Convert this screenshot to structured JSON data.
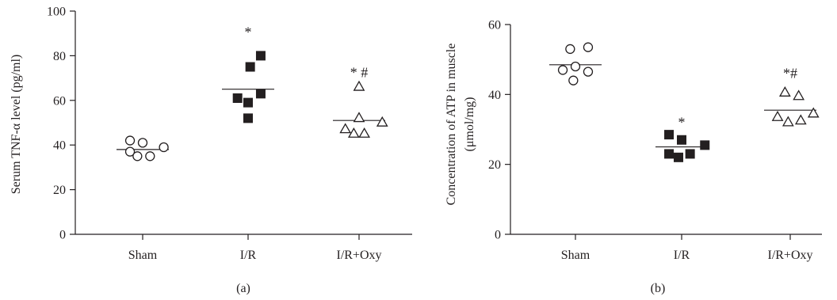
{
  "chart_data": [
    {
      "type": "scatter",
      "panel_label": "(a)",
      "ylabel": "Serum TNF-α level (pg/ml)",
      "xlabel": "",
      "categories": [
        "Sham",
        "I/R",
        "I/R+Oxy"
      ],
      "ylim": [
        0,
        100
      ],
      "yticks": [
        0,
        20,
        40,
        60,
        80,
        100
      ],
      "series": [
        {
          "marker": "circle-open",
          "mean": 38,
          "points": [
            [
              -0.12,
              42
            ],
            [
              0.0,
              41
            ],
            [
              0.2,
              39
            ],
            [
              -0.12,
              37
            ],
            [
              -0.05,
              35
            ],
            [
              0.07,
              35
            ]
          ]
        },
        {
          "marker": "square-filled",
          "mean": 65,
          "points": [
            [
              0.12,
              80
            ],
            [
              0.02,
              75
            ],
            [
              0.12,
              63
            ],
            [
              -0.1,
              61
            ],
            [
              0.0,
              59
            ],
            [
              0.0,
              52
            ]
          ]
        },
        {
          "marker": "triangle-open",
          "mean": 51,
          "points": [
            [
              0.0,
              66
            ],
            [
              0.0,
              52
            ],
            [
              0.22,
              50
            ],
            [
              -0.13,
              47
            ],
            [
              -0.05,
              45
            ],
            [
              0.05,
              45
            ]
          ]
        }
      ],
      "annotations": [
        {
          "category": "I/R",
          "text": "*",
          "y": 92
        },
        {
          "category": "I/R+Oxy",
          "text": "* #",
          "y": 74
        }
      ],
      "grid": false
    },
    {
      "type": "scatter",
      "panel_label": "(b)",
      "ylabel": "Concentration of ATP in muscle (μmol/mg)",
      "ylabel_line1": "Concentration of ATP in muscle",
      "ylabel_line2": "(μmol/mg)",
      "xlabel": "",
      "categories": [
        "Sham",
        "I/R",
        "I/R+Oxy"
      ],
      "ylim": [
        0,
        60
      ],
      "yticks": [
        0,
        20,
        40,
        60
      ],
      "series": [
        {
          "marker": "circle-open",
          "mean": 48.5,
          "points": [
            [
              -0.05,
              53
            ],
            [
              0.12,
              53.5
            ],
            [
              -0.12,
              47
            ],
            [
              0.0,
              48
            ],
            [
              0.12,
              46.5
            ],
            [
              -0.02,
              44
            ]
          ]
        },
        {
          "marker": "square-filled",
          "mean": 25,
          "points": [
            [
              -0.12,
              28.5
            ],
            [
              0.0,
              27
            ],
            [
              0.22,
              25.5
            ],
            [
              -0.12,
              23
            ],
            [
              -0.03,
              22
            ],
            [
              0.08,
              23
            ]
          ]
        },
        {
          "marker": "triangle-open",
          "mean": 35.5,
          "points": [
            [
              -0.05,
              40.5
            ],
            [
              0.08,
              39.5
            ],
            [
              0.22,
              34.5
            ],
            [
              -0.12,
              33.5
            ],
            [
              -0.02,
              32
            ],
            [
              0.1,
              32.5
            ]
          ]
        }
      ],
      "annotations": [
        {
          "category": "I/R",
          "text": "*",
          "y": 33
        },
        {
          "category": "I/R+Oxy",
          "text": "*#",
          "y": 47
        }
      ],
      "grid": false
    }
  ]
}
